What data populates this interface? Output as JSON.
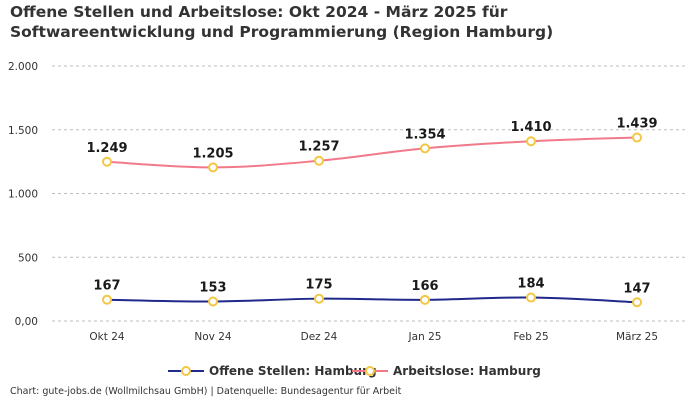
{
  "title": "Offene Stellen und Arbeitslose: Okt 2024 - März 2025 für Softwareentwicklung und Programmierung (Region Hamburg)",
  "source": "Chart: gute-jobs.de (Wollmilchsau GmbH) | Datenquelle: Bundesagentur für Arbeit",
  "chart_data": {
    "type": "line",
    "categories": [
      "Okt 24",
      "Nov 24",
      "Dez 24",
      "Jan 25",
      "Feb 25",
      "März 25"
    ],
    "ylim": [
      0,
      2000
    ],
    "yticks": [
      0,
      500,
      1000,
      1500,
      2000
    ],
    "ytick_labels": [
      "0,00",
      "500",
      "1.000",
      "1.500",
      "2.000"
    ],
    "grid": true,
    "legend_position": "bottom",
    "series": [
      {
        "name": "Offene Stellen: Hamburg",
        "color": "#1f2a8a",
        "marker_color": "#f2c744",
        "values": [
          167,
          153,
          175,
          166,
          184,
          147
        ],
        "labels": [
          "167",
          "153",
          "175",
          "166",
          "184",
          "147"
        ]
      },
      {
        "name": "Arbeitslose: Hamburg",
        "color": "#f07a8a",
        "marker_color": "#f2c744",
        "values": [
          1249,
          1205,
          1257,
          1354,
          1410,
          1439
        ],
        "labels": [
          "1.249",
          "1.205",
          "1.257",
          "1.354",
          "1.410",
          "1.439"
        ]
      }
    ]
  }
}
